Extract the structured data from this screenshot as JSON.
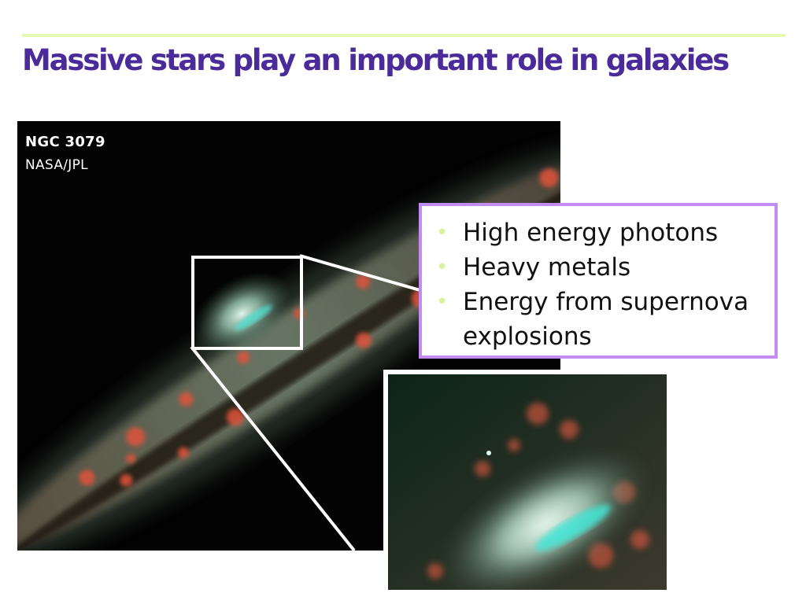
{
  "slide": {
    "title": "Massive stars play an important role in galaxies",
    "photo": {
      "name": "NGC 3079",
      "credit": "NASA/JPL"
    },
    "bullets": [
      {
        "text": "High energy photons"
      },
      {
        "text": "Heavy metals"
      },
      {
        "text": "Energy from supernova explosions"
      }
    ]
  },
  "colors": {
    "title": "#4b2b9a",
    "top_rule": "#e6f9b4",
    "box_border": "#c38cf0",
    "bullet_dot": "#d8f3a0"
  }
}
